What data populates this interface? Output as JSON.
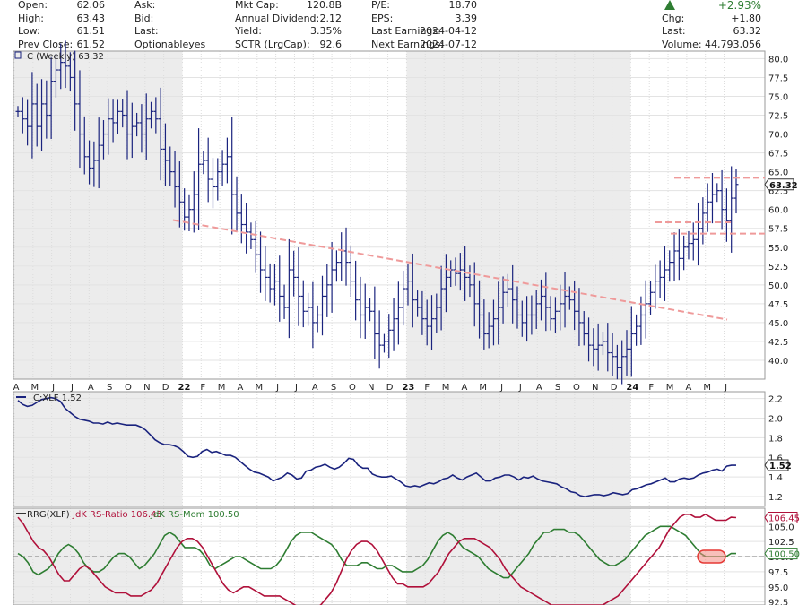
{
  "quote": {
    "rows": [
      [
        {
          "l": "Open:",
          "v": "62.06"
        },
        {
          "l": "Ask:",
          "v": ""
        },
        {
          "l": "Mkt Cap:",
          "v": "120.8B"
        },
        {
          "l": "P/E:",
          "v": "18.70"
        }
      ],
      [
        {
          "l": "High:",
          "v": "63.43"
        },
        {
          "l": "Bid:",
          "v": ""
        },
        {
          "l": "Annual Dividend:",
          "v": "2.12"
        },
        {
          "l": "EPS:",
          "v": "3.39"
        }
      ],
      [
        {
          "l": "Low:",
          "v": "61.51"
        },
        {
          "l": "Last:",
          "v": ""
        },
        {
          "l": "Yield:",
          "v": "3.35%"
        },
        {
          "l": "Last Earnings:",
          "v": "2024-04-12"
        }
      ],
      [
        {
          "l": "Prev Close:",
          "v": "61.52"
        },
        {
          "l": "Optionableyes",
          "v": ""
        },
        {
          "l": "SCTR (LrgCap):",
          "v": "92.6"
        },
        {
          "l": "Next Earnings:",
          "v": "2024-07-12"
        }
      ]
    ],
    "right": {
      "change_pct": "+2.93%",
      "chg_label": "Chg:",
      "chg_value": "+1.80",
      "last_label": "Last:",
      "last_value": "63.32",
      "volume_label": "Volume:",
      "volume_value": "44,793,056"
    }
  },
  "colors": {
    "price": "#1a237e",
    "trend": "#ef9a9a",
    "rs": "#1a237e",
    "ratio": "#b0103a",
    "mom": "#2e7d32",
    "accent_up": "#2e7d32"
  },
  "chart_data": [
    {
      "type": "ohlc",
      "title": "C (Weekly) 63.32",
      "last_label": "63.32",
      "ylim": [
        37.5,
        81.0
      ],
      "yticks": [
        "80.0",
        "77.5",
        "75.0",
        "72.5",
        "70.0",
        "67.5",
        "65.0",
        "62.5",
        "60.0",
        "57.5",
        "55.0",
        "52.5",
        "50.0",
        "47.5",
        "45.0",
        "42.5",
        "40.0"
      ],
      "month_labels": [
        "A",
        "M",
        "J",
        "J",
        "A",
        "S",
        "O",
        "N",
        "D",
        "22",
        "F",
        "M",
        "A",
        "M",
        "J",
        "J",
        "A",
        "S",
        "O",
        "N",
        "D",
        "23",
        "F",
        "M",
        "A",
        "M",
        "J",
        "J",
        "A",
        "S",
        "O",
        "N",
        "D",
        "24",
        "F",
        "M",
        "A",
        "M",
        "J"
      ],
      "closes": [
        73.0,
        72.0,
        71.0,
        74.0,
        71.0,
        74.0,
        72.5,
        77.0,
        78.5,
        79.5,
        79.0,
        77.5,
        74.0,
        70.0,
        67.0,
        65.5,
        66.5,
        68.5,
        70.0,
        72.0,
        71.5,
        73.0,
        72.5,
        70.0,
        71.0,
        71.5,
        70.0,
        72.0,
        73.0,
        72.0,
        68.0,
        66.5,
        65.0,
        63.0,
        61.0,
        59.0,
        60.0,
        62.0,
        66.0,
        66.5,
        64.0,
        63.0,
        65.0,
        66.0,
        67.0,
        62.0,
        59.5,
        58.0,
        57.0,
        56.0,
        54.0,
        52.0,
        51.0,
        49.5,
        50.5,
        48.5,
        47.0,
        52.0,
        51.0,
        48.5,
        46.5,
        47.0,
        45.0,
        46.0,
        48.5,
        50.0,
        52.0,
        53.0,
        54.5,
        53.0,
        50.5,
        48.0,
        46.0,
        47.0,
        46.5,
        43.5,
        42.0,
        42.5,
        44.0,
        45.5,
        47.0,
        49.5,
        50.5,
        48.0,
        47.0,
        45.5,
        44.5,
        45.5,
        47.0,
        49.5,
        51.0,
        52.0,
        51.5,
        52.0,
        51.0,
        50.0,
        47.5,
        46.0,
        43.5,
        44.5,
        45.5,
        47.0,
        49.0,
        49.5,
        48.0,
        46.0,
        45.0,
        46.0,
        46.0,
        47.5,
        48.5,
        47.0,
        45.5,
        46.5,
        47.5,
        48.5,
        48.0,
        46.5,
        45.0,
        43.5,
        42.0,
        41.5,
        42.0,
        42.5,
        41.0,
        40.5,
        39.0,
        40.5,
        41.5,
        43.5,
        44.5,
        46.0,
        47.5,
        49.0,
        50.5,
        51.0,
        52.0,
        53.0,
        54.5,
        53.5,
        55.0,
        55.5,
        56.0,
        57.5,
        59.5,
        61.0,
        62.0,
        62.5,
        60.0,
        58.5,
        61.5,
        63.32
      ]
    },
    {
      "type": "line",
      "title": "_C:XLF 1.52",
      "last_label": "1.52",
      "ylim": [
        1.1,
        2.27
      ],
      "yticks": [
        "2.2",
        "2.0",
        "1.8",
        "1.6",
        "1.4",
        "1.2"
      ],
      "values": [
        2.18,
        2.14,
        2.12,
        2.13,
        2.16,
        2.19,
        2.2,
        2.21,
        2.2,
        2.17,
        2.1,
        2.06,
        2.02,
        1.99,
        1.98,
        1.97,
        1.95,
        1.95,
        1.94,
        1.96,
        1.94,
        1.95,
        1.94,
        1.93,
        1.93,
        1.93,
        1.91,
        1.88,
        1.83,
        1.78,
        1.75,
        1.73,
        1.73,
        1.72,
        1.7,
        1.66,
        1.61,
        1.6,
        1.61,
        1.66,
        1.68,
        1.65,
        1.66,
        1.64,
        1.62,
        1.62,
        1.6,
        1.56,
        1.52,
        1.48,
        1.45,
        1.44,
        1.42,
        1.4,
        1.36,
        1.38,
        1.4,
        1.44,
        1.42,
        1.38,
        1.39,
        1.46,
        1.47,
        1.5,
        1.51,
        1.53,
        1.5,
        1.48,
        1.5,
        1.54,
        1.59,
        1.58,
        1.52,
        1.49,
        1.49,
        1.43,
        1.41,
        1.4,
        1.4,
        1.41,
        1.38,
        1.35,
        1.31,
        1.3,
        1.31,
        1.3,
        1.32,
        1.34,
        1.33,
        1.35,
        1.38,
        1.39,
        1.42,
        1.39,
        1.37,
        1.4,
        1.42,
        1.44,
        1.4,
        1.36,
        1.36,
        1.39,
        1.4,
        1.42,
        1.42,
        1.4,
        1.37,
        1.4,
        1.39,
        1.41,
        1.38,
        1.36,
        1.35,
        1.34,
        1.33,
        1.3,
        1.28,
        1.25,
        1.24,
        1.21,
        1.2,
        1.21,
        1.22,
        1.22,
        1.21,
        1.22,
        1.24,
        1.23,
        1.22,
        1.23,
        1.27,
        1.28,
        1.3,
        1.32,
        1.33,
        1.35,
        1.37,
        1.39,
        1.35,
        1.35,
        1.38,
        1.39,
        1.38,
        1.39,
        1.42,
        1.44,
        1.45,
        1.47,
        1.48,
        1.46,
        1.51,
        1.52,
        1.52
      ]
    },
    {
      "type": "line",
      "title_prefix": "RRG(XLF)",
      "series": [
        {
          "name": "JdK RS-Ratio 106.45",
          "last_label": "106.45"
        },
        {
          "name": "JdK RS-Mom 100.50",
          "last_label": "100.50"
        }
      ],
      "ylim": [
        92.0,
        108.0
      ],
      "yticks": [
        "105.0",
        "102.5",
        "100.0",
        "97.5",
        "95.0",
        "92.5"
      ],
      "ratio": [
        106.5,
        105.5,
        104.0,
        102.5,
        101.5,
        101.0,
        100.0,
        98.5,
        97.0,
        96.0,
        96.0,
        97.0,
        98.0,
        98.5,
        98.0,
        97.0,
        96.0,
        95.0,
        94.5,
        94.0,
        94.0,
        94.0,
        93.5,
        93.5,
        93.5,
        94.0,
        94.5,
        95.5,
        97.0,
        98.5,
        100.0,
        101.5,
        102.5,
        103.0,
        103.0,
        102.5,
        101.5,
        100.0,
        98.5,
        97.0,
        95.5,
        94.5,
        94.0,
        94.5,
        95.0,
        95.0,
        94.5,
        94.0,
        93.5,
        93.5,
        93.5,
        93.5,
        93.0,
        92.5,
        92.0,
        91.5,
        91.5,
        91.5,
        91.5,
        92.0,
        93.0,
        94.0,
        95.5,
        97.5,
        99.5,
        101.0,
        102.0,
        102.5,
        102.5,
        102.0,
        101.0,
        99.5,
        98.0,
        96.5,
        95.5,
        95.5,
        95.0,
        95.0,
        95.0,
        95.0,
        95.5,
        96.5,
        97.5,
        99.0,
        100.5,
        101.5,
        102.5,
        103.0,
        103.0,
        103.0,
        102.5,
        102.0,
        101.5,
        100.5,
        99.5,
        98.0,
        97.0,
        96.0,
        95.0,
        94.5,
        94.0,
        93.5,
        93.0,
        92.5,
        92.0,
        92.0,
        92.0,
        92.0,
        92.0,
        92.0,
        92.0,
        92.0,
        92.0,
        92.0,
        92.0,
        92.5,
        93.0,
        93.5,
        94.5,
        95.5,
        96.5,
        97.5,
        98.5,
        99.5,
        100.5,
        101.5,
        103.0,
        104.5,
        105.5,
        106.5,
        107.0,
        107.0,
        106.5,
        106.5,
        107.0,
        106.5,
        106.0,
        106.0,
        106.0,
        106.5,
        106.45
      ],
      "momentum": [
        100.5,
        100.0,
        99.0,
        97.5,
        97.0,
        97.5,
        98.0,
        99.0,
        100.5,
        101.5,
        102.0,
        101.5,
        100.5,
        99.0,
        98.0,
        97.5,
        97.5,
        98.0,
        99.0,
        100.0,
        100.5,
        100.5,
        100.0,
        99.0,
        98.0,
        98.5,
        99.5,
        100.5,
        102.0,
        103.5,
        104.0,
        103.5,
        102.5,
        101.5,
        101.5,
        101.5,
        101.0,
        100.0,
        98.5,
        98.0,
        98.5,
        99.0,
        99.5,
        100.0,
        100.0,
        99.5,
        99.0,
        98.5,
        98.0,
        98.0,
        98.0,
        98.5,
        99.5,
        101.0,
        102.5,
        103.5,
        104.0,
        104.0,
        104.0,
        103.5,
        103.0,
        102.5,
        102.0,
        101.0,
        99.5,
        98.5,
        98.5,
        98.5,
        99.0,
        99.0,
        98.5,
        98.0,
        98.0,
        98.5,
        98.5,
        98.0,
        97.5,
        97.5,
        97.5,
        98.0,
        98.5,
        99.5,
        101.0,
        102.5,
        103.5,
        104.0,
        103.5,
        102.5,
        101.5,
        101.0,
        100.5,
        100.0,
        99.0,
        98.0,
        97.5,
        97.0,
        96.5,
        96.5,
        97.5,
        98.5,
        99.5,
        100.5,
        102.0,
        103.0,
        104.0,
        104.0,
        104.5,
        104.5,
        104.5,
        104.0,
        104.0,
        103.5,
        102.5,
        101.5,
        100.5,
        99.5,
        99.0,
        98.5,
        98.5,
        99.0,
        99.5,
        100.5,
        101.5,
        102.5,
        103.5,
        104.0,
        104.5,
        105.0,
        105.0,
        105.0,
        104.5,
        104.0,
        103.5,
        102.5,
        101.5,
        100.5,
        100.0,
        100.0,
        100.0,
        100.0,
        100.0,
        100.5,
        100.5
      ]
    }
  ]
}
